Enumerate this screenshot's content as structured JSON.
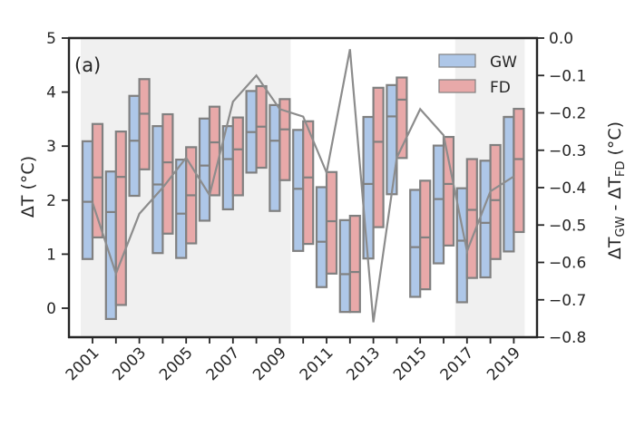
{
  "chart_data": {
    "type": "box",
    "panel_label": "(a)",
    "x": [
      2001,
      2002,
      2003,
      2004,
      2005,
      2006,
      2007,
      2008,
      2009,
      2010,
      2011,
      2012,
      2013,
      2014,
      2015,
      2016,
      2017,
      2018,
      2019
    ],
    "x_tick_labels": [
      "2001",
      "2003",
      "2005",
      "2007",
      "2009",
      "2011",
      "2013",
      "2015",
      "2017",
      "2019"
    ],
    "left_axis": {
      "label": "ΔT (°C)",
      "ylim": [
        -0.5,
        5
      ],
      "ticks": [
        0,
        1,
        2,
        3,
        4,
        5
      ],
      "tick_labels": [
        "0",
        "1",
        "2",
        "3",
        "4",
        "5"
      ]
    },
    "right_axis": {
      "label_prefix": "ΔT",
      "label_sub1": "GW",
      "label_mid": " - ΔT",
      "label_sub2": "FD",
      "label_suffix": " (°C)",
      "ylim": [
        -0.8,
        0.0
      ],
      "ticks": [
        0.0,
        -0.1,
        -0.2,
        -0.3,
        -0.4,
        -0.5,
        -0.6,
        -0.7,
        -0.8
      ],
      "tick_labels": [
        "0.0",
        "−0.1",
        "−0.2",
        "−0.3",
        "−0.4",
        "−0.5",
        "−0.6",
        "−0.7",
        "−0.8"
      ]
    },
    "shaded_periods": [
      [
        2001,
        2009
      ],
      [
        2017,
        2019
      ]
    ],
    "legend": {
      "position": "top-right",
      "entries": [
        "GW",
        "FD"
      ]
    },
    "colors": {
      "GW": "#aec7e8",
      "FD": "#e8a9a9",
      "edge": "#808080",
      "line": "#8c8c8c",
      "shade": "#f0f0f0",
      "axis": "#262626"
    },
    "series": [
      {
        "name": "GW",
        "q1": [
          0.91,
          -0.2,
          2.08,
          1.02,
          0.93,
          1.62,
          1.83,
          2.51,
          1.8,
          1.06,
          0.39,
          -0.07,
          0.92,
          2.11,
          0.21,
          0.83,
          0.11,
          0.57,
          1.05
        ],
        "median": [
          1.97,
          1.78,
          3.1,
          2.29,
          1.75,
          2.64,
          2.76,
          3.26,
          3.1,
          2.21,
          1.23,
          0.63,
          2.3,
          3.55,
          1.13,
          2.02,
          1.25,
          1.58,
          3.54
        ],
        "q3": [
          3.09,
          2.53,
          3.93,
          3.37,
          2.75,
          3.51,
          3.37,
          4.02,
          3.76,
          3.3,
          2.24,
          1.63,
          3.54,
          4.13,
          2.19,
          3.01,
          2.22,
          2.73,
          3.54
        ]
      },
      {
        "name": "FD",
        "q1": [
          1.31,
          0.06,
          2.57,
          1.38,
          1.2,
          2.09,
          2.09,
          2.6,
          2.37,
          1.19,
          0.64,
          -0.07,
          1.5,
          2.78,
          0.35,
          1.16,
          0.56,
          0.91,
          1.41
        ],
        "median": [
          2.42,
          2.43,
          3.6,
          2.7,
          2.09,
          3.07,
          2.94,
          3.36,
          3.31,
          2.42,
          1.61,
          0.67,
          3.08,
          3.86,
          1.31,
          2.3,
          1.82,
          2.0,
          2.76
        ],
        "q3": [
          3.41,
          3.27,
          4.24,
          3.59,
          2.98,
          3.73,
          3.53,
          4.11,
          3.87,
          3.46,
          2.52,
          1.71,
          4.08,
          4.27,
          2.36,
          3.17,
          2.76,
          3.02,
          3.69
        ]
      },
      {
        "name": "ΔT_GW - ΔT_FD",
        "axis": "right",
        "type": "line",
        "values": [
          -0.44,
          -0.63,
          -0.47,
          -0.4,
          -0.32,
          -0.42,
          -0.17,
          -0.1,
          -0.19,
          -0.21,
          -0.36,
          -0.03,
          -0.76,
          -0.32,
          -0.19,
          -0.26,
          -0.57,
          -0.41,
          -0.37
        ]
      }
    ]
  }
}
